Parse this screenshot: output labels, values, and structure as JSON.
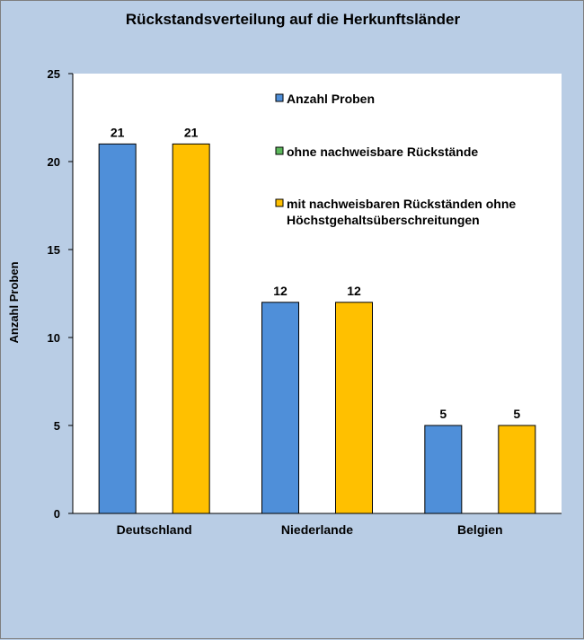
{
  "chart_data": {
    "type": "bar",
    "title": "Rückstandsverteilung auf die Herkunftsländer",
    "ylabel": "Anzahl Proben",
    "xlabel": "",
    "ylim": [
      0,
      25
    ],
    "yticks": [
      0,
      5,
      10,
      15,
      20,
      25
    ],
    "categories": [
      "Deutschland",
      "Niederlande",
      "Belgien"
    ],
    "series": [
      {
        "name": "Anzahl Proben",
        "color": "#4f8fd9",
        "values": [
          21,
          12,
          5
        ]
      },
      {
        "name": "ohne nachweisbare Rückstände",
        "color": "#5cb85c",
        "values": [
          0,
          0,
          0
        ]
      },
      {
        "name": "mit nachweisbaren Rückständen ohne Höchstgehaltsüberschreitungen",
        "color": "#ffc000",
        "values": [
          21,
          12,
          5
        ]
      }
    ],
    "legend": {
      "placement": "top-right",
      "entries": [
        {
          "lines": [
            "Anzahl Proben"
          ],
          "color": "#4f8fd9"
        },
        {
          "lines": [
            "ohne nachweisbare Rückstände"
          ],
          "color": "#5cb85c"
        },
        {
          "lines": [
            "mit nachweisbaren Rückständen ohne",
            "Höchstgehaltsüberschreitungen"
          ],
          "color": "#ffc000"
        }
      ]
    },
    "grid": false,
    "data_labels": true
  }
}
